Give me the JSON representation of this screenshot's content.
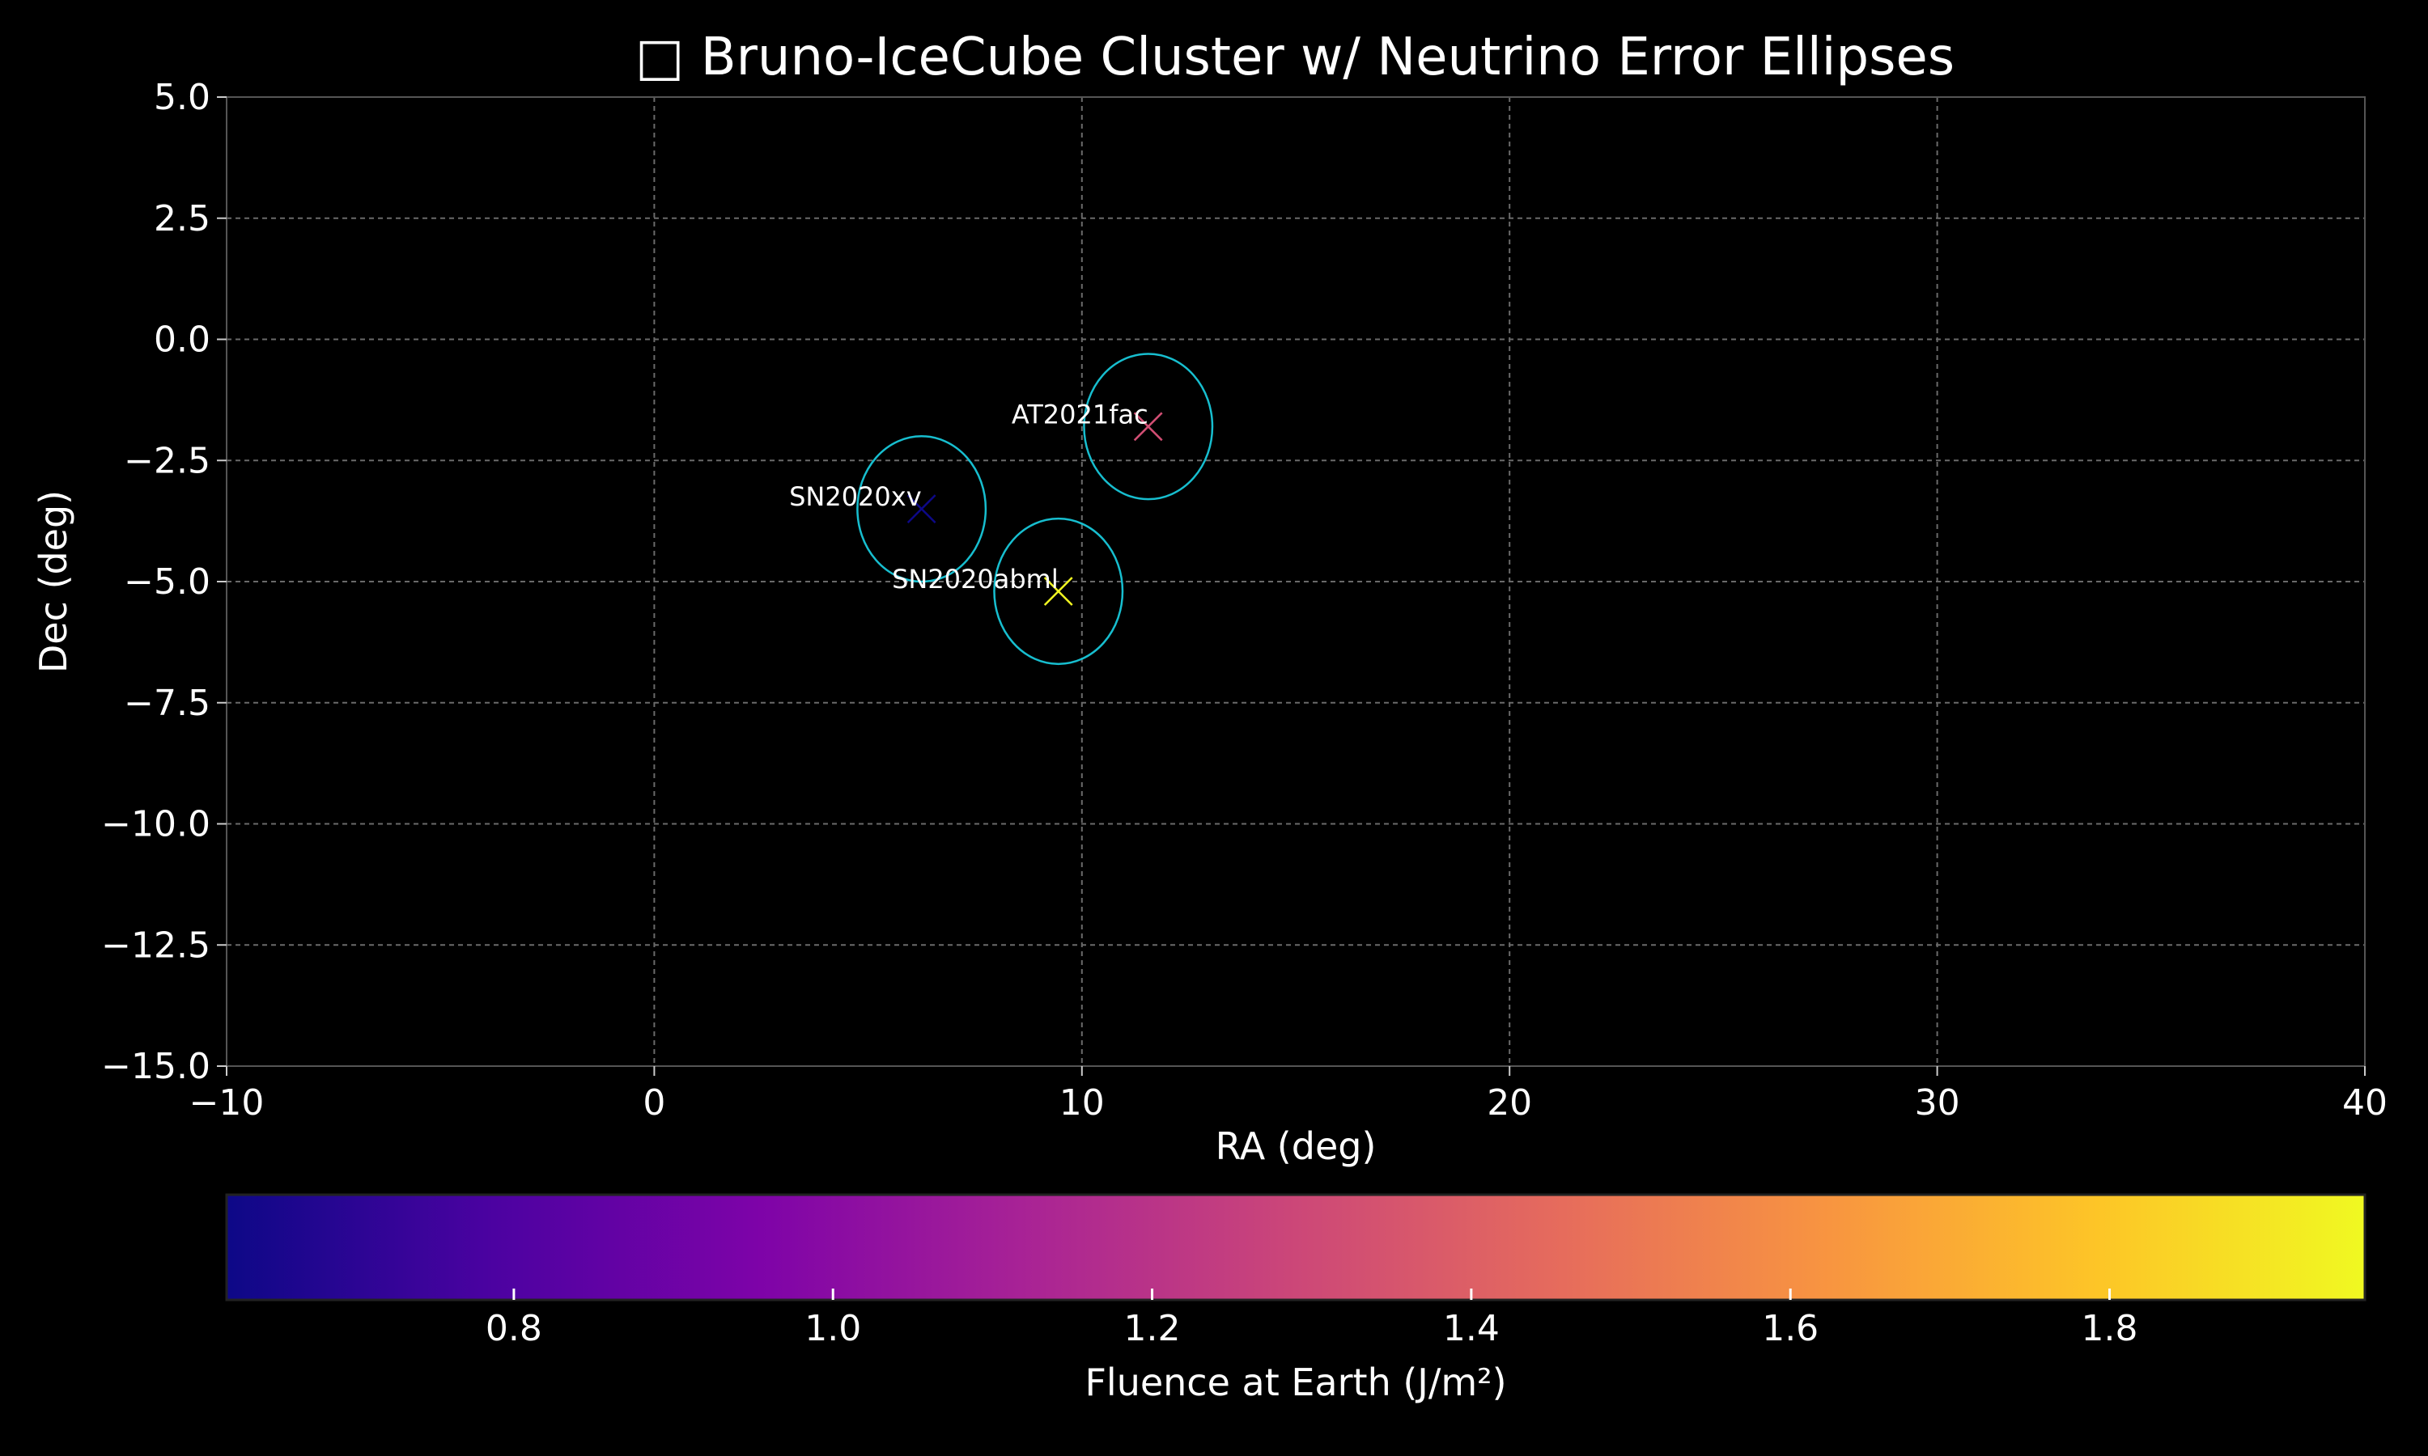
{
  "chart_data": {
    "type": "scatter",
    "title": "□ Bruno-IceCube Cluster w/ Neutrino Error Ellipses",
    "xlabel": "RA (deg)",
    "ylabel": "Dec (deg)",
    "xlim": [
      -10,
      40
    ],
    "ylim": [
      -15,
      5
    ],
    "x_ticks": [
      -10,
      0,
      10,
      20,
      30,
      40
    ],
    "x_tick_labels": [
      "−10",
      "0",
      "10",
      "20",
      "30",
      "40"
    ],
    "y_ticks": [
      5,
      2.5,
      0,
      -2.5,
      -5,
      -7.5,
      -10,
      -12.5,
      -15
    ],
    "y_tick_labels": [
      "5.0",
      "2.5",
      "0.0",
      "−2.5",
      "−5.0",
      "−7.5",
      "−10.0",
      "−12.5",
      "−15.0"
    ],
    "grid": true,
    "marker": "x",
    "points": [
      {
        "label": "SN2020xv",
        "ra": 6.25,
        "dec": -3.5,
        "fluence": 0.62,
        "ellipse_ra_radius": 1.5,
        "ellipse_dec_radius": 1.5
      },
      {
        "label": "AT2021fac",
        "ra": 11.55,
        "dec": -1.8,
        "fluence": 1.32,
        "ellipse_ra_radius": 1.5,
        "ellipse_dec_radius": 1.5
      },
      {
        "label": "SN2020abml",
        "ra": 9.45,
        "dec": -5.2,
        "fluence": 1.95,
        "ellipse_ra_radius": 1.5,
        "ellipse_dec_radius": 1.5
      }
    ],
    "ellipse_color": "#17becf",
    "colorbar": {
      "label": "Fluence at Earth (J/m²)",
      "colormap": "plasma",
      "range": [
        0.62,
        1.96
      ],
      "ticks": [
        0.8,
        1.0,
        1.2,
        1.4,
        1.6,
        1.8
      ],
      "tick_labels": [
        "0.8",
        "1.0",
        "1.2",
        "1.4",
        "1.6",
        "1.8"
      ],
      "placement": "bottom"
    }
  }
}
